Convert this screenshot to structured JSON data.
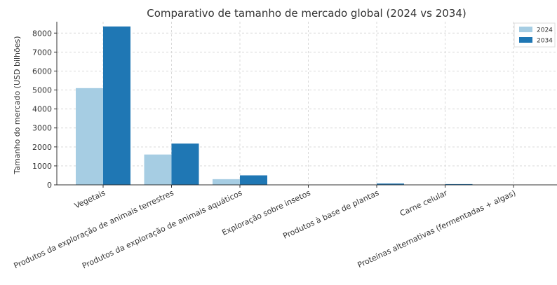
{
  "chart_data": {
    "type": "bar",
    "title": "Comparativo de tamanho de mercado global (2024 vs 2034)",
    "xlabel": "",
    "ylabel": "Tamanho do mercado (USD bilhões)",
    "ylim": [
      0,
      8600
    ],
    "yticks": [
      0,
      1000,
      2000,
      3000,
      4000,
      5000,
      6000,
      7000,
      8000
    ],
    "grid": true,
    "legend_position": "top-right",
    "categories": [
      "Vegetais",
      "Produtos da exploração de animais terrestres",
      "Produtos da exploração de animais aquáticos",
      "Exploração sobre insetos",
      "Produtos à base de plantas",
      "Carne celular",
      "Proteínas alternativas (fermentadas + algas)"
    ],
    "series": [
      {
        "name": "2024",
        "color": "#a6cde3",
        "values": [
          5100,
          1600,
          300,
          1,
          20,
          1,
          3
        ]
      },
      {
        "name": "2034",
        "color": "#1f77b4",
        "values": [
          8350,
          2180,
          500,
          3,
          70,
          40,
          10
        ]
      }
    ]
  }
}
